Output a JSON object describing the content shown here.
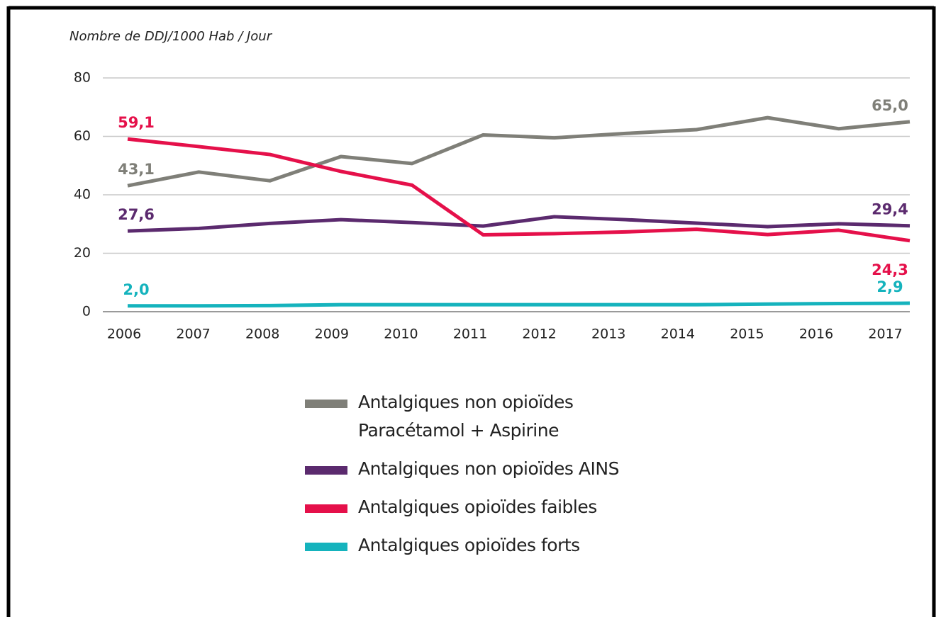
{
  "chart_data": {
    "type": "line",
    "y_axis_label": "Nombre de DDJ/1000 Hab / Jour",
    "categories": [
      "2006",
      "2007",
      "2008",
      "2009",
      "2010",
      "2011",
      "2012",
      "2013",
      "2014",
      "2015",
      "2016",
      "2017"
    ],
    "series": [
      {
        "name": "Antalgiques non opioïdes\nParacétamol + Aspirine",
        "color": "#7f7f78",
        "values": [
          43.1,
          47.8,
          44.8,
          53.1,
          50.7,
          60.5,
          59.5,
          61.0,
          62.3,
          66.4,
          62.6,
          65.0
        ],
        "value_labels": [
          "43,1",
          null,
          null,
          null,
          null,
          null,
          null,
          null,
          null,
          null,
          null,
          "65,0"
        ]
      },
      {
        "name": "Antalgiques non opioïdes AINS",
        "color": "#5b2a6e",
        "values": [
          27.6,
          28.5,
          30.2,
          31.5,
          30.5,
          29.3,
          32.5,
          31.5,
          30.3,
          29.1,
          30.1,
          29.4
        ],
        "value_labels": [
          "27,6",
          null,
          null,
          null,
          null,
          null,
          null,
          null,
          null,
          null,
          null,
          "29,4"
        ]
      },
      {
        "name": "Antalgiques opioïdes faibles",
        "color": "#e5104a",
        "values": [
          59.1,
          56.5,
          53.8,
          48.0,
          43.3,
          26.3,
          26.7,
          27.3,
          28.2,
          26.4,
          27.9,
          24.3
        ],
        "value_labels": [
          "59,1",
          null,
          null,
          null,
          null,
          null,
          null,
          null,
          null,
          null,
          null,
          "24,3"
        ]
      },
      {
        "name": "Antalgiques opioïdes forts",
        "color": "#15b3bd",
        "values": [
          2.0,
          2.0,
          2.1,
          2.4,
          2.4,
          2.4,
          2.4,
          2.4,
          2.4,
          2.6,
          2.8,
          2.9
        ],
        "value_labels": [
          "2,0",
          null,
          null,
          null,
          null,
          null,
          null,
          null,
          null,
          null,
          null,
          "2,9"
        ]
      }
    ],
    "ylim": [
      0,
      80
    ],
    "yticks": [
      0,
      20,
      40,
      60,
      80
    ],
    "grid": true,
    "legend": "bottom"
  }
}
